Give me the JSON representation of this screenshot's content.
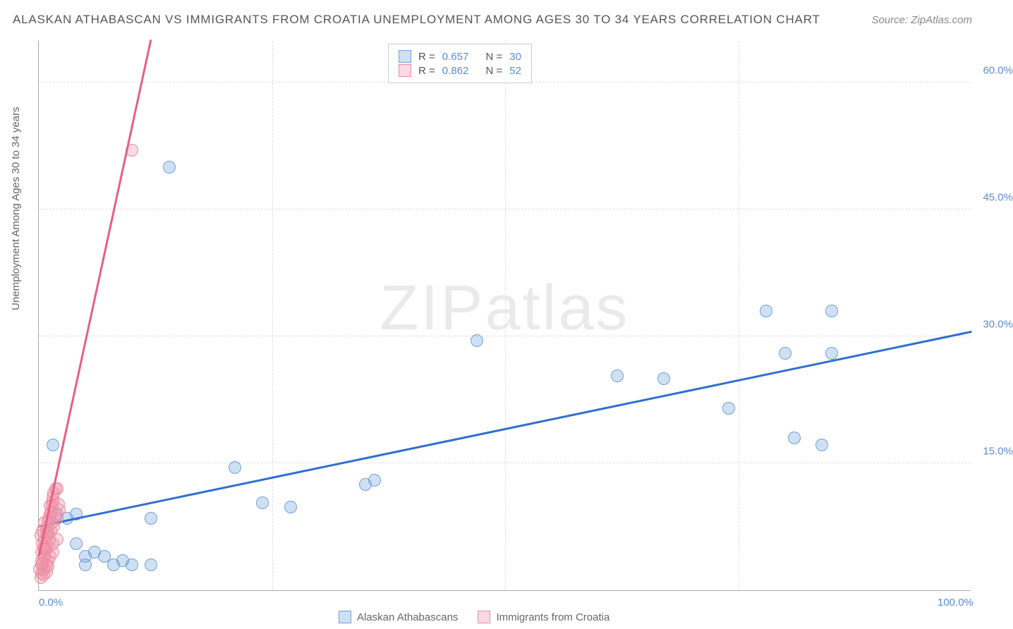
{
  "title": "ALASKAN ATHABASCAN VS IMMIGRANTS FROM CROATIA UNEMPLOYMENT AMONG AGES 30 TO 34 YEARS CORRELATION CHART",
  "source": "Source: ZipAtlas.com",
  "watermark": "ZIPatlas",
  "y_axis_label": "Unemployment Among Ages 30 to 34 years",
  "chart": {
    "type": "scatter",
    "xlim": [
      0,
      100
    ],
    "ylim": [
      0,
      65
    ],
    "y_ticks": [
      15.0,
      30.0,
      45.0,
      60.0
    ],
    "x_ticks": [
      0.0,
      100.0
    ],
    "y_tick_fmt": "%",
    "grid_color": "#dddddd",
    "background": "#ffffff",
    "axis_color": "#aaaaaa",
    "tick_color": "#5b8bd4",
    "marker_radius": 9,
    "series": [
      {
        "name": "Alaskan Athabascans",
        "color_fill": "rgba(120,165,220,0.35)",
        "color_stroke": "#6f9fd8",
        "trend_line_color": "#2f6fd0",
        "R": "0.657",
        "N": "30",
        "trend": {
          "x1": 0,
          "y1": 7.5,
          "x2": 100,
          "y2": 30.5
        },
        "points": [
          [
            1.5,
            17.2
          ],
          [
            2,
            9
          ],
          [
            3,
            8.5
          ],
          [
            4,
            9
          ],
          [
            5,
            4
          ],
          [
            5,
            3
          ],
          [
            7,
            4
          ],
          [
            8,
            3
          ],
          [
            9,
            3.5
          ],
          [
            10,
            3
          ],
          [
            12,
            3
          ],
          [
            12,
            8.5
          ],
          [
            21,
            14.5
          ],
          [
            24,
            10.3
          ],
          [
            27,
            9.8
          ],
          [
            35,
            12.5
          ],
          [
            36,
            13
          ],
          [
            14,
            50
          ],
          [
            47,
            29.5
          ],
          [
            62,
            25.3
          ],
          [
            67,
            25
          ],
          [
            74,
            21.5
          ],
          [
            78,
            33
          ],
          [
            80,
            28
          ],
          [
            81,
            18
          ],
          [
            84,
            17.2
          ],
          [
            85,
            33
          ],
          [
            85,
            28
          ],
          [
            6,
            4.5
          ],
          [
            4,
            5.5
          ]
        ]
      },
      {
        "name": "Immigrants from Croatia",
        "color_fill": "rgba(240,150,170,0.35)",
        "color_stroke": "#e98ba2",
        "trend_line_color": "#e65f87",
        "R": "0.862",
        "N": "52",
        "trend": {
          "x1": 0,
          "y1": 4,
          "x2": 12,
          "y2": 65
        },
        "points": [
          [
            0.3,
            3
          ],
          [
            0.5,
            4
          ],
          [
            0.5,
            5
          ],
          [
            0.7,
            6
          ],
          [
            0.8,
            7
          ],
          [
            1,
            7.5
          ],
          [
            1,
            8.2
          ],
          [
            1.2,
            9
          ],
          [
            1.2,
            10
          ],
          [
            1.5,
            10.5
          ],
          [
            1.5,
            11
          ],
          [
            1.8,
            12
          ],
          [
            2,
            12
          ],
          [
            0.3,
            2
          ],
          [
            0.5,
            2.5
          ],
          [
            0.8,
            3
          ],
          [
            1,
            3.5
          ],
          [
            1.2,
            4
          ],
          [
            1.5,
            4.5
          ],
          [
            1.5,
            5.5
          ],
          [
            2,
            6
          ],
          [
            2,
            8.5
          ],
          [
            2.2,
            9.5
          ],
          [
            0.2,
            6.5
          ],
          [
            0.4,
            7
          ],
          [
            0.6,
            8
          ],
          [
            0.3,
            4.5
          ],
          [
            0.4,
            5.5
          ],
          [
            0.6,
            4
          ],
          [
            0.9,
            5
          ],
          [
            1.1,
            6
          ],
          [
            1.3,
            7
          ],
          [
            1.4,
            8
          ],
          [
            10,
            52
          ],
          [
            0.2,
            1.5
          ],
          [
            0.5,
            1.8
          ],
          [
            0.8,
            2.2
          ],
          [
            1,
            2.8
          ],
          [
            0.3,
            3.5
          ],
          [
            0.6,
            5
          ],
          [
            0.9,
            6.5
          ],
          [
            1.1,
            8.5
          ],
          [
            1.4,
            10
          ],
          [
            1.6,
            11.5
          ],
          [
            0.1,
            2.5
          ],
          [
            0.4,
            3.2
          ],
          [
            0.7,
            4.8
          ],
          [
            1,
            6.8
          ],
          [
            1.3,
            9.2
          ],
          [
            1.6,
            7.5
          ],
          [
            1.8,
            8.8
          ],
          [
            2.1,
            10.2
          ]
        ]
      }
    ]
  },
  "legend_top_labels": {
    "R": "R =",
    "N": "N ="
  },
  "legend_bottom": [
    "Alaskan Athabascans",
    "Immigrants from Croatia"
  ]
}
